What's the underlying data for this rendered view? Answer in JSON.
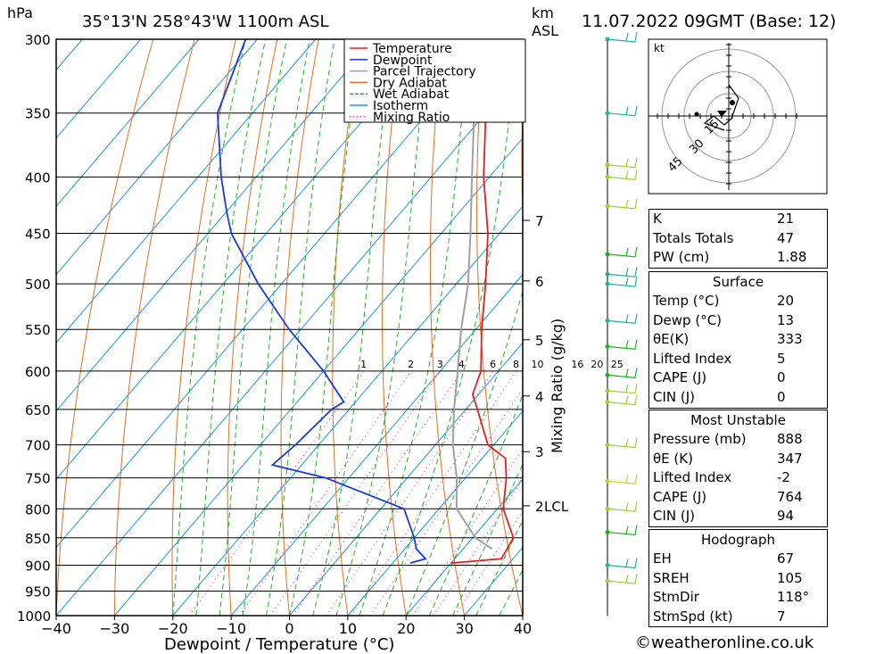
{
  "header": {
    "hpa_label": "hPa",
    "location": "35°13'N  258°43'W  1100m  ASL",
    "km_label": "km",
    "asl_label": "ASL",
    "datetime": "11.07.2022  09GMT  (Base: 12)"
  },
  "chart_data": {
    "type": "skew-t",
    "title": "35°13'N  258°43'W  1100m  ASL",
    "xlabel": "Dewpoint / Temperature (°C)",
    "ylabel": "hPa",
    "right_axis_label": "Mixing Ratio (g/kg)",
    "xlim": [
      -40,
      40
    ],
    "ylim": [
      1000,
      300
    ],
    "temp_ticks": [
      -40,
      -30,
      -20,
      -10,
      0,
      10,
      20,
      30,
      40
    ],
    "temp_tick_labels": [
      "−40",
      "−30",
      "−20",
      "−10",
      "0",
      "10",
      "20",
      "30",
      "40"
    ],
    "pressure_levels": [
      300,
      350,
      400,
      450,
      500,
      550,
      600,
      650,
      700,
      750,
      800,
      850,
      900,
      950,
      1000
    ],
    "pressure_labels": [
      "300",
      "350",
      "400",
      "450",
      "500",
      "550",
      "600",
      "650",
      "700",
      "750",
      "800",
      "850",
      "900",
      "950",
      "1000"
    ],
    "km_ticks": [
      {
        "km": 2,
        "p": 795,
        "label": "2"
      },
      {
        "km": 3,
        "p": 710,
        "label": "3"
      },
      {
        "km": 4,
        "p": 632,
        "label": "4"
      },
      {
        "km": 5,
        "p": 562,
        "label": "5"
      },
      {
        "km": 6,
        "p": 497,
        "label": "6"
      },
      {
        "km": 7,
        "p": 438,
        "label": "7"
      }
    ],
    "lcl_label": "LCL",
    "lcl_pressure": 795,
    "mixing_ratios": [
      1,
      2,
      3,
      4,
      6,
      8,
      10,
      16,
      20,
      25
    ],
    "mixing_ratio_labels": [
      "1",
      "2",
      "3",
      "4",
      "6",
      "8",
      "10",
      "16",
      "20",
      "25"
    ],
    "series": [
      {
        "name": "Temperature",
        "color": "#e02020",
        "points": [
          [
            896,
            20
          ],
          [
            888,
            28
          ],
          [
            850,
            27
          ],
          [
            800,
            21
          ],
          [
            750,
            17
          ],
          [
            720,
            14
          ],
          [
            700,
            9
          ],
          [
            650,
            2
          ],
          [
            630,
            -1
          ],
          [
            600,
            -3
          ],
          [
            550,
            -9
          ],
          [
            500,
            -15
          ],
          [
            450,
            -22
          ],
          [
            400,
            -31
          ],
          [
            350,
            -40
          ],
          [
            300,
            -50
          ]
        ]
      },
      {
        "name": "Dewpoint",
        "color": "#1a3ad8",
        "points": [
          [
            896,
            13
          ],
          [
            888,
            15
          ],
          [
            870,
            12
          ],
          [
            850,
            10
          ],
          [
            800,
            4
          ],
          [
            750,
            -14
          ],
          [
            730,
            -25
          ],
          [
            700,
            -24
          ],
          [
            650,
            -23
          ],
          [
            640,
            -22
          ],
          [
            600,
            -30
          ],
          [
            550,
            -42
          ],
          [
            500,
            -54
          ],
          [
            450,
            -66
          ],
          [
            430,
            -70
          ],
          [
            400,
            -76
          ],
          [
            350,
            -86
          ],
          [
            300,
            -92
          ]
        ]
      },
      {
        "name": "Parcel Trajectory",
        "color": "#a0a0a0",
        "points": [
          [
            870,
            25
          ],
          [
            850,
            20.5
          ],
          [
            800,
            13
          ],
          [
            750,
            8.5
          ],
          [
            700,
            3
          ],
          [
            650,
            -2
          ],
          [
            600,
            -7
          ],
          [
            550,
            -12.5
          ],
          [
            500,
            -18
          ],
          [
            450,
            -25
          ],
          [
            400,
            -33
          ],
          [
            350,
            -42
          ],
          [
            300,
            -53
          ]
        ]
      }
    ],
    "legend": [
      "Temperature",
      "Dewpoint",
      "Parcel Trajectory",
      "Dry Adiabat",
      "Wet Adiabat",
      "Isotherm",
      "Mixing Ratio"
    ],
    "legend_colors": [
      "#e02020",
      "#1a3ad8",
      "#a0a0a0",
      "#e07020",
      "#20b020",
      "#1a9ae0",
      "#e0208a"
    ]
  },
  "hodograph": {
    "unit_label": "kt",
    "ring_labels": [
      "15",
      "30",
      "45"
    ]
  },
  "indices": {
    "k_label": "K",
    "k_value": "21",
    "tt_label": "Totals Totals",
    "tt_value": "47",
    "pw_label": "PW (cm)",
    "pw_value": "1.88"
  },
  "surface": {
    "title": "Surface",
    "rows": [
      {
        "label": "Temp (°C)",
        "value": "20"
      },
      {
        "label": "Dewp (°C)",
        "value": "13"
      },
      {
        "label": "θE(K)",
        "value": "333"
      },
      {
        "label": "Lifted Index",
        "value": "5"
      },
      {
        "label": "CAPE (J)",
        "value": "0"
      },
      {
        "label": "CIN (J)",
        "value": "0"
      }
    ]
  },
  "most_unstable": {
    "title": "Most Unstable",
    "rows": [
      {
        "label": "Pressure (mb)",
        "value": "888"
      },
      {
        "label": "θE (K)",
        "value": "347"
      },
      {
        "label": "Lifted Index",
        "value": "-2"
      },
      {
        "label": "CAPE (J)",
        "value": "764"
      },
      {
        "label": "CIN (J)",
        "value": "94"
      }
    ]
  },
  "hodograph_stats": {
    "title": "Hodograph",
    "rows": [
      {
        "label": "EH",
        "value": "67"
      },
      {
        "label": "SREH",
        "value": "105"
      },
      {
        "label": "StmDir",
        "value": "118°"
      },
      {
        "label": "StmSpd (kt)",
        "value": "7"
      }
    ]
  },
  "footer": {
    "copyright": "©weatheronline.co.uk"
  }
}
